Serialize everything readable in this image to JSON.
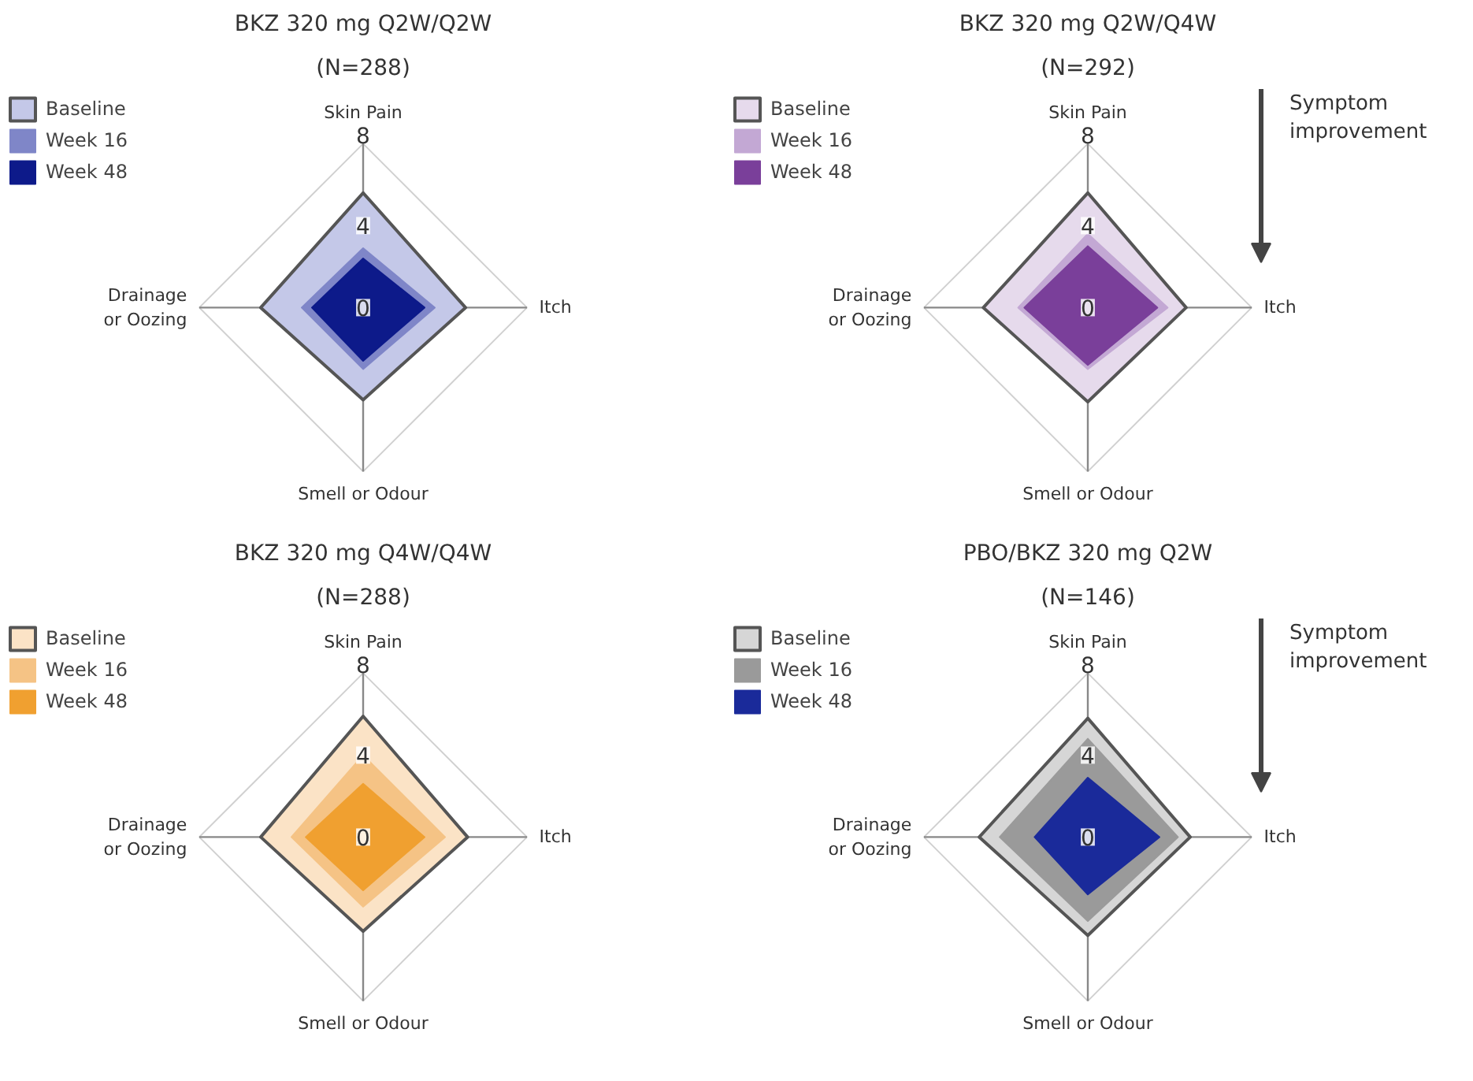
{
  "chart_data": [
    {
      "type": "radar",
      "title": "BKZ 320 mg Q2W/Q2W",
      "subtitle": "(N=288)",
      "categories": [
        "Skin Pain",
        "Itch",
        "Smell or Odour",
        "Drainage or Oozing"
      ],
      "ylim": [
        0,
        8
      ],
      "yticks": [
        0,
        4,
        8
      ],
      "legend": "top left",
      "series": [
        {
          "name": "Baseline",
          "color": "#c4c8e8",
          "values": [
            5.6,
            5.0,
            4.5,
            5.0
          ]
        },
        {
          "name": "Week 16",
          "color": "#7f86c8",
          "values": [
            2.9,
            3.5,
            3.0,
            3.0
          ]
        },
        {
          "name": "Week 48",
          "color": "#0d1a8a",
          "values": [
            2.4,
            3.0,
            2.6,
            2.5
          ]
        }
      ]
    },
    {
      "type": "radar",
      "title": "BKZ 320 mg Q2W/Q4W",
      "subtitle": "(N=292)",
      "categories": [
        "Skin Pain",
        "Itch",
        "Smell or Odour",
        "Drainage or Oozing"
      ],
      "ylim": [
        0,
        8
      ],
      "yticks": [
        0,
        4,
        8
      ],
      "legend": "top left",
      "annotations": [
        "Symptom improvement"
      ],
      "series": [
        {
          "name": "Baseline",
          "color": "#e6daec",
          "values": [
            5.6,
            4.8,
            4.6,
            5.1
          ]
        },
        {
          "name": "Week 16",
          "color": "#c3a8d4",
          "values": [
            3.6,
            3.9,
            3.0,
            3.4
          ]
        },
        {
          "name": "Week 48",
          "color": "#7a3f9a",
          "values": [
            3.0,
            3.4,
            2.8,
            3.1
          ]
        }
      ]
    },
    {
      "type": "radar",
      "title": "BKZ 320 mg Q4W/Q4W",
      "subtitle": "(N=288)",
      "categories": [
        "Skin Pain",
        "Itch",
        "Smell or Odour",
        "Drainage or Oozing"
      ],
      "ylim": [
        0,
        8
      ],
      "yticks": [
        0,
        4,
        8
      ],
      "legend": "top left",
      "series": [
        {
          "name": "Baseline",
          "color": "#fbe3c6",
          "values": [
            5.9,
            5.1,
            4.6,
            5.0
          ]
        },
        {
          "name": "Week 16",
          "color": "#f5c385",
          "values": [
            4.0,
            4.0,
            3.4,
            3.5
          ]
        },
        {
          "name": "Week 48",
          "color": "#f0a030",
          "values": [
            2.6,
            3.0,
            2.6,
            2.8
          ]
        }
      ]
    },
    {
      "type": "radar",
      "title": "PBO/BKZ 320 mg Q2W",
      "subtitle": "(N=146)",
      "categories": [
        "Skin Pain",
        "Itch",
        "Smell or Odour",
        "Drainage or Oozing"
      ],
      "ylim": [
        0,
        8
      ],
      "yticks": [
        0,
        4,
        8
      ],
      "legend": "top left",
      "annotations": [
        "Symptom improvement"
      ],
      "series": [
        {
          "name": "Baseline",
          "color": "#d6d6d6",
          "values": [
            5.8,
            5.0,
            4.8,
            5.3
          ]
        },
        {
          "name": "Week 16",
          "color": "#9a9a9a",
          "values": [
            4.8,
            4.4,
            4.1,
            4.3
          ]
        },
        {
          "name": "Week 48",
          "color": "#1a2a9a",
          "values": [
            2.9,
            3.5,
            2.8,
            2.6
          ]
        }
      ]
    }
  ]
}
